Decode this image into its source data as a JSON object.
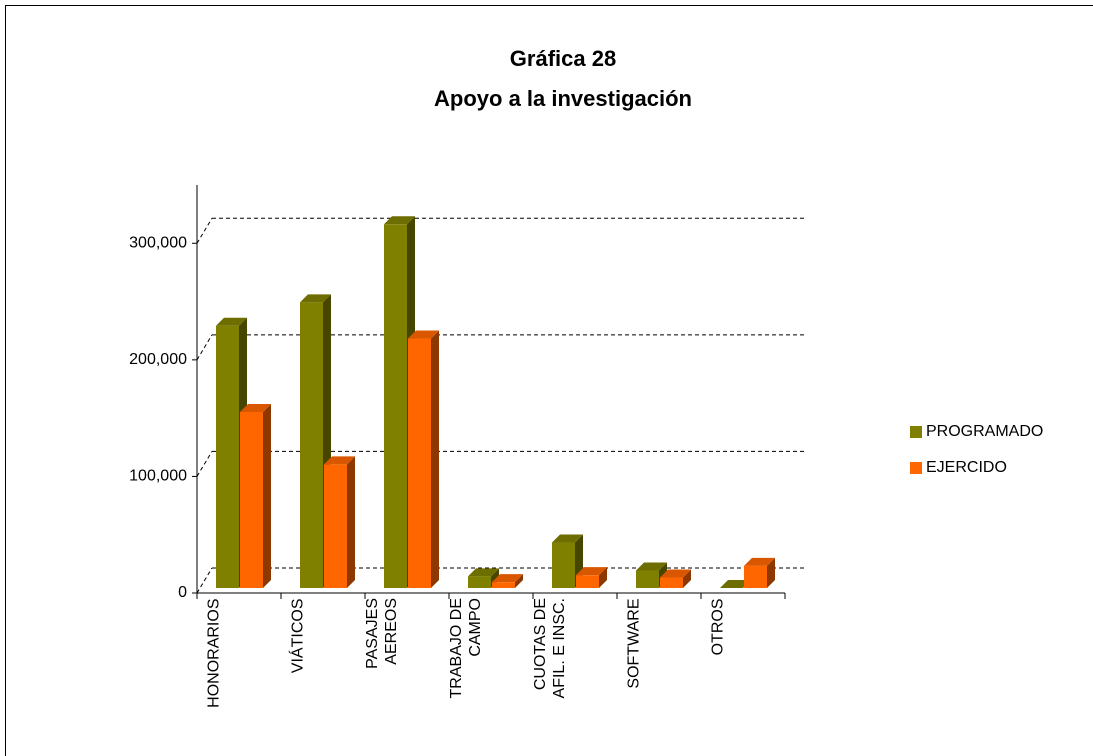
{
  "chart_data": {
    "type": "bar3d",
    "title": "Gráfica 28",
    "subtitle": "Apoyo a la investigación",
    "categories": [
      "HONORARIOS",
      "VIÁTICOS",
      "PASAJES\nAEREOS",
      "TRABAJO DE\nCAMPO",
      "CUOTAS DE\nAFIL. E INSC.",
      "SOFTWARE",
      "OTROS"
    ],
    "series": [
      {
        "name": "PROGRAMADO",
        "color": "#808000",
        "values": [
          225000,
          245000,
          312000,
          10000,
          39000,
          15000,
          0
        ]
      },
      {
        "name": "EJERCIDO",
        "color": "#ff6600",
        "values": [
          151000,
          106000,
          214000,
          5000,
          11000,
          9000,
          19000
        ]
      }
    ],
    "ylim": [
      0,
      350000
    ],
    "yticks": [
      0,
      {
        "value": 100000,
        "label": "100,000"
      },
      {
        "value": 200000,
        "label": "200,000"
      },
      {
        "value": 300000,
        "label": "300,000"
      }
    ],
    "grid": true,
    "legend": "right"
  }
}
